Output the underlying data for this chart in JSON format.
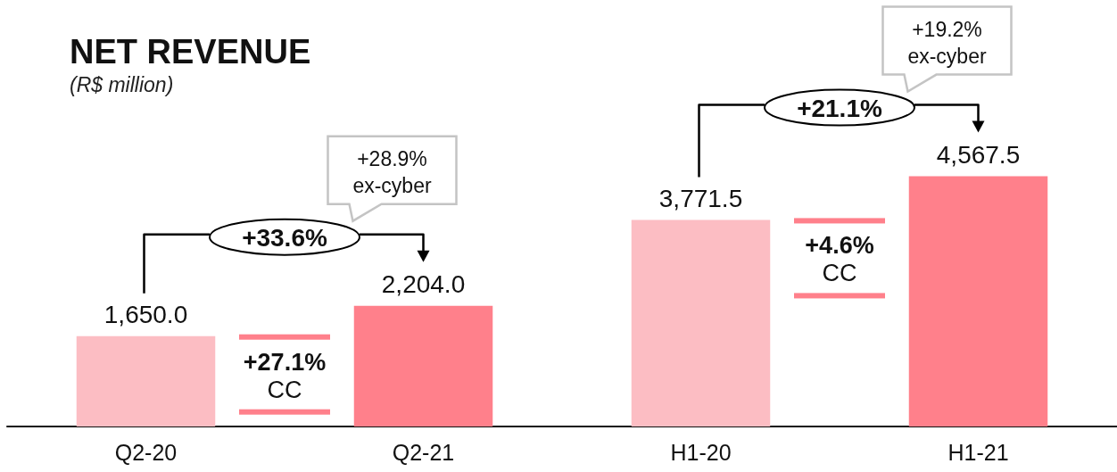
{
  "chart_data": {
    "type": "bar",
    "title": "NET REVENUE",
    "subtitle": "(R$ million)",
    "categories": [
      "Q2-20",
      "Q2-21",
      "H1-20",
      "H1-21"
    ],
    "values": [
      1650.0,
      2204.0,
      3771.5,
      4567.5
    ],
    "colors": [
      "#fcbdc3",
      "#ff808b",
      "#fcbdc3",
      "#ff808b"
    ],
    "value_labels": [
      "1,650.0",
      "2,204.0",
      "3,771.5",
      "4,567.5"
    ],
    "annotations": [
      "+33.6%",
      "+28.9%\nex-cyber",
      "+27.1%\nCC",
      "+21.1%",
      "+19.2%\nex-cyber",
      "+4.6%\nCC"
    ]
  }
}
